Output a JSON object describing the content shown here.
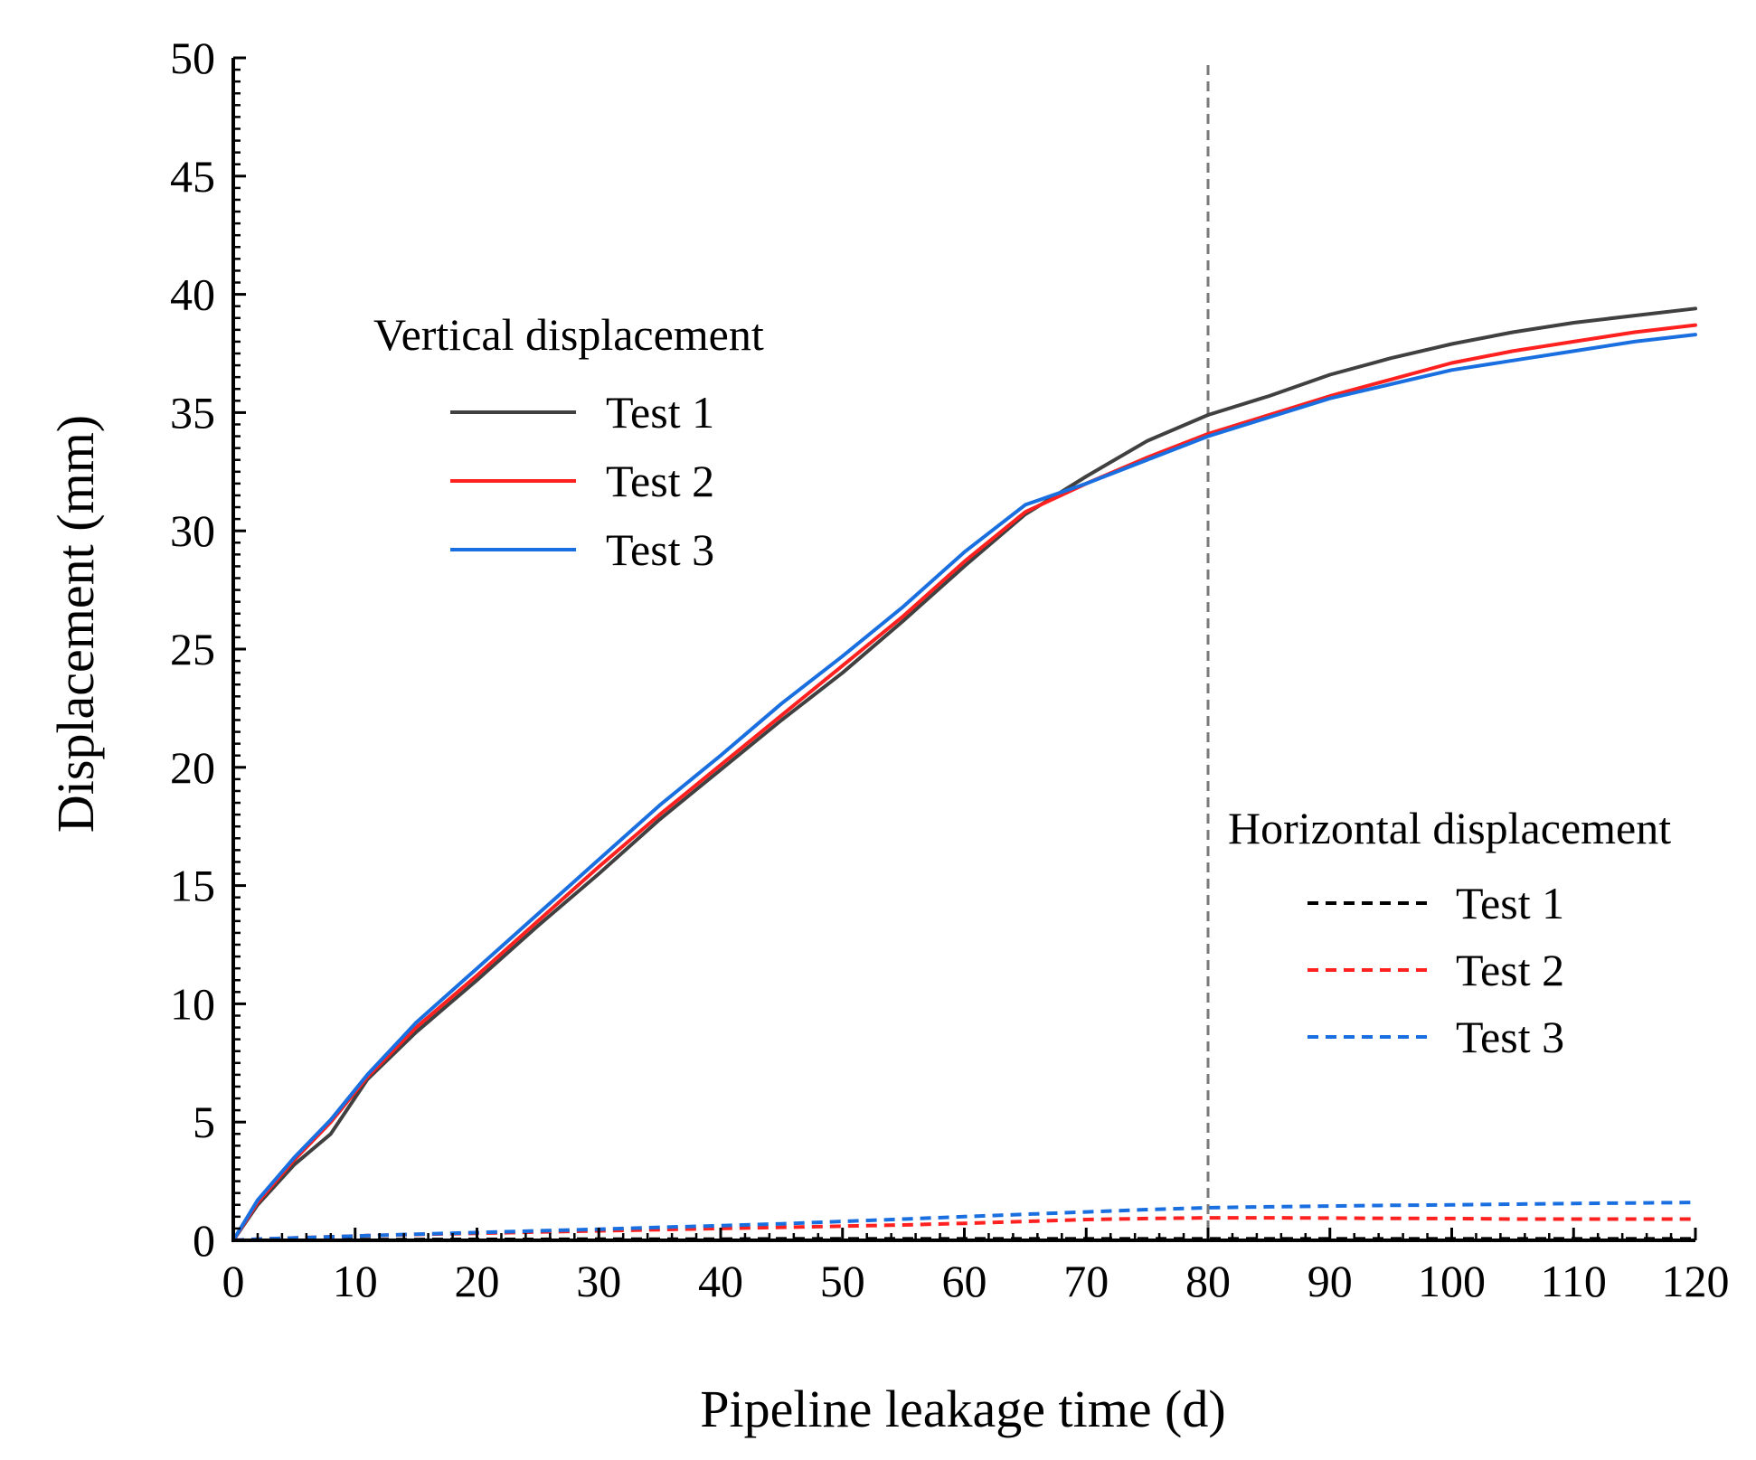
{
  "chart_data": {
    "type": "line",
    "title": "",
    "xlabel": "Pipeline leakage time (d)",
    "ylabel": "Displacement (mm)",
    "xlim": [
      0,
      120
    ],
    "ylim": [
      0,
      50
    ],
    "grid": false,
    "x_ticks": [
      "0",
      "10",
      "20",
      "30",
      "40",
      "50",
      "60",
      "70",
      "80",
      "90",
      "100",
      "110",
      "120"
    ],
    "y_ticks": [
      "0",
      "5",
      "10",
      "15",
      "20",
      "25",
      "30",
      "35",
      "40",
      "45",
      "50"
    ],
    "x_tick_values": [
      0,
      10,
      20,
      30,
      40,
      50,
      60,
      70,
      80,
      90,
      100,
      110,
      120
    ],
    "y_tick_values": [
      0,
      5,
      10,
      15,
      20,
      25,
      30,
      35,
      40,
      45,
      50
    ],
    "reference_line": {
      "x": 80,
      "style": "dashed",
      "color": "#7a7a7a"
    },
    "x": [
      0,
      2,
      5,
      8,
      11,
      15,
      20,
      25,
      30,
      35,
      40,
      45,
      50,
      55,
      60,
      65,
      70,
      75,
      80,
      85,
      90,
      95,
      100,
      105,
      110,
      115,
      120
    ],
    "legend_groups": [
      {
        "title": "Vertical displacement",
        "position": "upper-left",
        "style": "solid",
        "entries": [
          "Test 1",
          "Test 2",
          "Test 3"
        ]
      },
      {
        "title": "Horizontal displacement",
        "position": "lower-right",
        "style": "dashed",
        "entries": [
          "Test 1",
          "Test 2",
          "Test 3"
        ]
      }
    ],
    "series": [
      {
        "name": "Test 1",
        "group": "Vertical displacement",
        "style": "solid",
        "color": "#404040",
        "values": [
          0,
          1.5,
          3.2,
          4.5,
          6.8,
          8.8,
          11.0,
          13.3,
          15.5,
          17.8,
          19.9,
          22.0,
          24.0,
          26.2,
          28.5,
          30.7,
          32.3,
          33.8,
          34.9,
          35.7,
          36.6,
          37.3,
          37.9,
          38.4,
          38.8,
          39.1,
          39.4
        ]
      },
      {
        "name": "Test 2",
        "group": "Vertical displacement",
        "style": "solid",
        "color": "#ff2020",
        "values": [
          0,
          1.6,
          3.4,
          5.0,
          6.9,
          9.0,
          11.2,
          13.5,
          15.8,
          18.0,
          20.1,
          22.2,
          24.3,
          26.4,
          28.7,
          30.8,
          32.0,
          33.1,
          34.1,
          34.9,
          35.7,
          36.4,
          37.1,
          37.6,
          38.0,
          38.4,
          38.7
        ]
      },
      {
        "name": "Test 3",
        "group": "Vertical displacement",
        "style": "solid",
        "color": "#1a6fe0",
        "values": [
          0,
          1.7,
          3.5,
          5.1,
          7.0,
          9.2,
          11.5,
          13.8,
          16.1,
          18.4,
          20.5,
          22.7,
          24.7,
          26.8,
          29.1,
          31.1,
          32.0,
          33.0,
          34.0,
          34.8,
          35.6,
          36.2,
          36.8,
          37.2,
          37.6,
          38.0,
          38.3
        ]
      },
      {
        "name": "Test 1",
        "group": "Horizontal displacement",
        "style": "dashed",
        "color": "#000000",
        "values": [
          0,
          0.01,
          0.02,
          0.02,
          0.03,
          0.03,
          0.04,
          0.04,
          0.05,
          0.05,
          0.05,
          0.06,
          0.06,
          0.06,
          0.06,
          0.06,
          0.06,
          0.06,
          0.06,
          0.06,
          0.06,
          0.06,
          0.06,
          0.06,
          0.06,
          0.06,
          0.06
        ]
      },
      {
        "name": "Test 2",
        "group": "Horizontal displacement",
        "style": "dashed",
        "color": "#ff2020",
        "values": [
          0,
          0.05,
          0.1,
          0.15,
          0.2,
          0.25,
          0.3,
          0.35,
          0.4,
          0.45,
          0.5,
          0.55,
          0.6,
          0.65,
          0.72,
          0.8,
          0.88,
          0.92,
          0.95,
          0.95,
          0.94,
          0.93,
          0.92,
          0.9,
          0.9,
          0.9,
          0.9
        ]
      },
      {
        "name": "Test 3",
        "group": "Horizontal displacement",
        "style": "dashed",
        "color": "#1a6fe0",
        "values": [
          0,
          0.05,
          0.1,
          0.15,
          0.2,
          0.26,
          0.33,
          0.4,
          0.47,
          0.55,
          0.62,
          0.7,
          0.8,
          0.9,
          1.0,
          1.1,
          1.2,
          1.3,
          1.38,
          1.42,
          1.45,
          1.48,
          1.5,
          1.53,
          1.56,
          1.58,
          1.6
        ]
      }
    ]
  }
}
